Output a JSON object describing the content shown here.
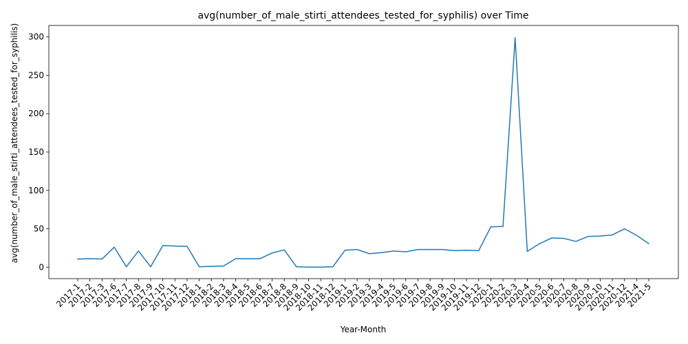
{
  "chart_data": {
    "type": "line",
    "title": "avg(number_of_male_stirti_attendees_tested_for_syphilis) over Time",
    "xlabel": "Year-Month",
    "ylabel": "avg(number_of_male_stirti_attendees_tested_for_syphilis)",
    "ylim": [
      -15,
      315
    ],
    "yticks": [
      0,
      50,
      100,
      150,
      200,
      250,
      300
    ],
    "grid": false,
    "legend": "none",
    "colors": {
      "line": "#1f77b4",
      "axis": "#000000",
      "background": "#ffffff"
    },
    "categories": [
      "2017-1",
      "2017-2",
      "2017-3",
      "2017-6",
      "2017-7",
      "2017-8",
      "2017-9",
      "2017-10",
      "2017-11",
      "2017-12",
      "2018-1",
      "2018-2",
      "2018-3",
      "2018-4",
      "2018-5",
      "2018-6",
      "2018-7",
      "2018-8",
      "2018-9",
      "2018-10",
      "2018-11",
      "2018-12",
      "2019-1",
      "2019-2",
      "2019-3",
      "2019-4",
      "2019-5",
      "2019-6",
      "2019-7",
      "2019-8",
      "2019-9",
      "2019-10",
      "2019-11",
      "2019-12",
      "2020-1",
      "2020-2",
      "2020-3",
      "2020-4",
      "2020-5",
      "2020-6",
      "2020-7",
      "2020-8",
      "2020-9",
      "2020-10",
      "2020-11",
      "2020-12",
      "2021-4",
      "2021-5"
    ],
    "series": [
      {
        "values": [
          10.5,
          11,
          10.5,
          26,
          0.5,
          21,
          0.5,
          28,
          27.5,
          27,
          0.5,
          1,
          1.5,
          11,
          11,
          11,
          18.5,
          22.5,
          0.5,
          0,
          0,
          0.5,
          22,
          23,
          17.5,
          19,
          21,
          20,
          23,
          23,
          23,
          21.5,
          22,
          21.5,
          52.5,
          53,
          299,
          20.5,
          30.5,
          38,
          37.5,
          33.5,
          40,
          40.5,
          42,
          50,
          41.5,
          30.5
        ]
      }
    ]
  }
}
